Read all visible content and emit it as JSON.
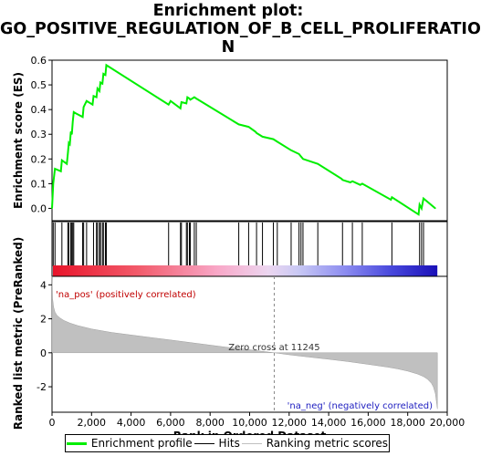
{
  "title_lines": [
    "Enrichment plot:",
    "GO_POSITIVE_REGULATION_OF_B_CELL_PROLIFERATIO",
    "N"
  ],
  "legend": {
    "items": [
      {
        "label": "Enrichment profile",
        "color": "#00ee00"
      },
      {
        "label": "Hits",
        "color": "#000000"
      },
      {
        "label": "Ranking metric scores",
        "color": "#c0c0c0"
      }
    ]
  },
  "colors": {
    "profile": "#00ee00",
    "hits": "#000000",
    "metric_fill": "#c0c0c0",
    "zero_line": "#888888"
  },
  "chart_data": [
    {
      "type": "line",
      "ylabel": "Enrichment score (ES)",
      "xlim": [
        0,
        20000
      ],
      "ylim": [
        -0.05,
        0.6
      ],
      "yticks": [
        0.0,
        0.1,
        0.2,
        0.3,
        0.4,
        0.5,
        0.6
      ],
      "series": [
        {
          "x": [
            0,
            60,
            150,
            450,
            500,
            750,
            800,
            850,
            900,
            950,
            1000,
            1050,
            1100,
            1200,
            1550,
            1600,
            1750,
            2050,
            2100,
            2250,
            2300,
            2400,
            2450,
            2550,
            2600,
            2700,
            2750,
            5900,
            6000,
            6500,
            6550,
            6800,
            6850,
            6950,
            7000,
            7200,
            7300,
            9450,
            9950,
            10300,
            10350,
            10650,
            11200,
            11400,
            12100,
            12500,
            12600,
            12700,
            13450,
            14650,
            14700,
            15100,
            15200,
            15600,
            15700,
            17150,
            17200,
            18550,
            18600,
            18700,
            18800,
            19400
          ],
          "y": [
            0.0,
            0.1,
            0.16,
            0.15,
            0.195,
            0.18,
            0.22,
            0.265,
            0.26,
            0.31,
            0.3,
            0.35,
            0.39,
            0.385,
            0.37,
            0.41,
            0.435,
            0.42,
            0.455,
            0.45,
            0.485,
            0.475,
            0.51,
            0.505,
            0.545,
            0.54,
            0.58,
            0.42,
            0.435,
            0.405,
            0.43,
            0.425,
            0.45,
            0.445,
            0.44,
            0.45,
            0.445,
            0.34,
            0.33,
            0.31,
            0.305,
            0.29,
            0.28,
            0.27,
            0.235,
            0.22,
            0.21,
            0.2,
            0.18,
            0.12,
            0.115,
            0.105,
            0.11,
            0.095,
            0.1,
            0.035,
            0.045,
            -0.025,
            0.015,
            0.0,
            0.04,
            0.0
          ]
        }
      ]
    },
    {
      "type": "scatter",
      "hits_x": [
        60,
        150,
        500,
        800,
        850,
        950,
        1000,
        1050,
        1100,
        1550,
        1600,
        1750,
        2100,
        2250,
        2300,
        2400,
        2450,
        2550,
        2600,
        2700,
        2750,
        5900,
        6500,
        6550,
        6800,
        6850,
        6950,
        7000,
        7200,
        7300,
        9450,
        9950,
        10350,
        10650,
        11200,
        11400,
        12100,
        12500,
        12600,
        12700,
        13450,
        14700,
        15200,
        15700,
        17200,
        18600,
        18700,
        18800
      ]
    },
    {
      "type": "area",
      "ylabel": "Ranked list metric (PreRanked)",
      "xlabel": "Rank in Ordered Dataset",
      "xlim": [
        0,
        20000
      ],
      "ylim": [
        -3.5,
        4.5
      ],
      "yticks": [
        -2,
        0,
        2,
        4
      ],
      "xticks": [
        0,
        2000,
        4000,
        6000,
        8000,
        10000,
        12000,
        14000,
        16000,
        18000,
        20000
      ],
      "x": [
        0,
        30,
        80,
        150,
        250,
        400,
        600,
        900,
        1300,
        2000,
        3000,
        4000,
        5000,
        6000,
        7000,
        8000,
        9000,
        10000,
        11245,
        12000,
        13000,
        14000,
        15000,
        16000,
        17000,
        17500,
        18000,
        18500,
        18800,
        19000,
        19200,
        19300,
        19400,
        19500
      ],
      "values": [
        4.5,
        3.2,
        2.7,
        2.4,
        2.2,
        2.05,
        1.9,
        1.75,
        1.6,
        1.4,
        1.2,
        1.05,
        0.9,
        0.75,
        0.6,
        0.45,
        0.3,
        0.18,
        0.0,
        -0.12,
        -0.25,
        -0.38,
        -0.52,
        -0.68,
        -0.85,
        -0.95,
        -1.08,
        -1.25,
        -1.4,
        -1.55,
        -1.8,
        -2.0,
        -2.4,
        -3.3
      ],
      "zero_cross": 11245,
      "annotations": {
        "pos": "'na_pos' (positively correlated)",
        "neg": "'na_neg' (negatively correlated)",
        "zero": "Zero cross at 11245"
      }
    }
  ]
}
